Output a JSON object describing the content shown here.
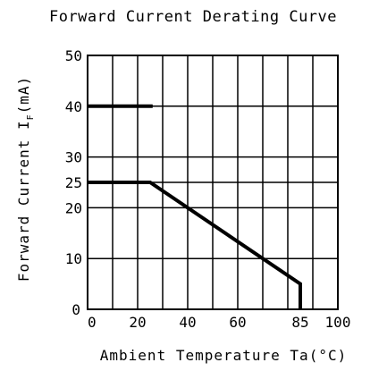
{
  "chart_data": {
    "type": "line",
    "title": "Forward Current Derating Curve",
    "xlabel": "Ambient Temperature Ta(°C)",
    "ylabel_main": "Forward Current I",
    "ylabel_sub": "F",
    "ylabel_unit": "(mA)",
    "xlim": [
      0,
      100
    ],
    "ylim": [
      0,
      50
    ],
    "grid": true,
    "x_ticks": [
      0,
      20,
      40,
      60,
      85,
      100
    ],
    "x_tick_labels": [
      "0",
      "20",
      "40",
      "60",
      "85",
      "100"
    ],
    "x_gridlines": [
      0,
      10,
      20,
      30,
      40,
      50,
      60,
      70,
      80,
      90,
      100
    ],
    "y_ticks": [
      0,
      10,
      20,
      25,
      30,
      40,
      50
    ],
    "y_tick_labels": [
      "0",
      "10",
      "20",
      "25",
      "30",
      "40",
      "50"
    ],
    "y_gridlines": [
      0,
      10,
      20,
      25,
      30,
      40,
      50
    ],
    "series": [
      {
        "points": [
          [
            0,
            40
          ],
          [
            26,
            40
          ]
        ]
      },
      {
        "points": [
          [
            0,
            25
          ],
          [
            25,
            25
          ],
          [
            85,
            5
          ],
          [
            85,
            0
          ]
        ]
      }
    ]
  }
}
